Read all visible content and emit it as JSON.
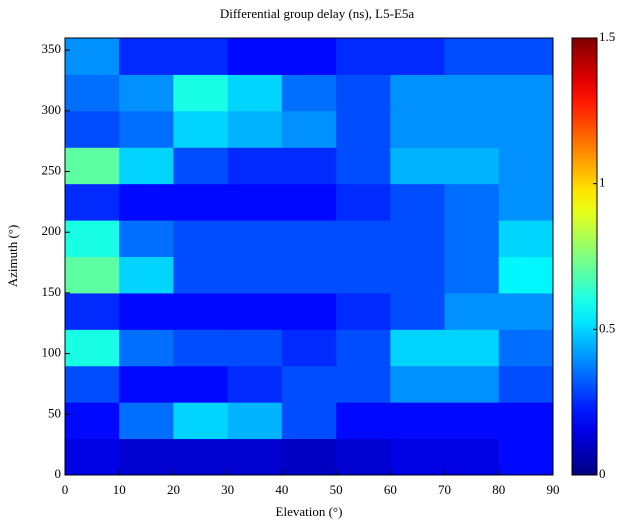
{
  "chart_data": {
    "type": "heatmap",
    "title": "Differential group delay (ns), L5-E5a",
    "x_label": "Elevation (°)",
    "y_label": "Azimuth (°)",
    "x": [
      5,
      15,
      25,
      35,
      45,
      55,
      65,
      75,
      85
    ],
    "y": [
      15,
      45,
      75,
      105,
      135,
      165,
      195,
      225,
      255,
      285,
      315,
      345
    ],
    "z": [
      [
        0.15,
        0.12,
        0.12,
        0.12,
        0.1,
        0.12,
        0.15,
        0.15,
        0.2
      ],
      [
        0.2,
        0.35,
        0.5,
        0.45,
        0.3,
        0.2,
        0.2,
        0.2,
        0.2
      ],
      [
        0.3,
        0.2,
        0.2,
        0.25,
        0.3,
        0.3,
        0.4,
        0.4,
        0.3
      ],
      [
        0.6,
        0.35,
        0.3,
        0.3,
        0.25,
        0.3,
        0.5,
        0.5,
        0.35
      ],
      [
        0.25,
        0.2,
        0.2,
        0.2,
        0.2,
        0.25,
        0.3,
        0.4,
        0.4
      ],
      [
        0.7,
        0.5,
        0.3,
        0.3,
        0.3,
        0.3,
        0.3,
        0.35,
        0.55
      ],
      [
        0.6,
        0.35,
        0.3,
        0.3,
        0.3,
        0.3,
        0.3,
        0.35,
        0.5
      ],
      [
        0.25,
        0.2,
        0.2,
        0.2,
        0.2,
        0.25,
        0.3,
        0.35,
        0.4
      ],
      [
        0.7,
        0.5,
        0.3,
        0.25,
        0.25,
        0.3,
        0.45,
        0.45,
        0.4
      ],
      [
        0.3,
        0.35,
        0.5,
        0.45,
        0.4,
        0.3,
        0.4,
        0.4,
        0.4
      ],
      [
        0.35,
        0.4,
        0.6,
        0.5,
        0.35,
        0.3,
        0.4,
        0.4,
        0.4
      ],
      [
        0.4,
        0.25,
        0.25,
        0.2,
        0.2,
        0.25,
        0.25,
        0.3,
        0.3
      ]
    ],
    "xlim": [
      0,
      90
    ],
    "xticks": [
      0,
      10,
      20,
      30,
      40,
      50,
      60,
      70,
      80,
      90
    ],
    "ylim": [
      0,
      360
    ],
    "yticks": [
      0,
      50,
      100,
      150,
      200,
      250,
      300,
      350
    ],
    "zlim": [
      0,
      1.5
    ],
    "zticks": [
      0,
      0.5,
      1,
      1.5
    ],
    "colormap": "jet"
  }
}
